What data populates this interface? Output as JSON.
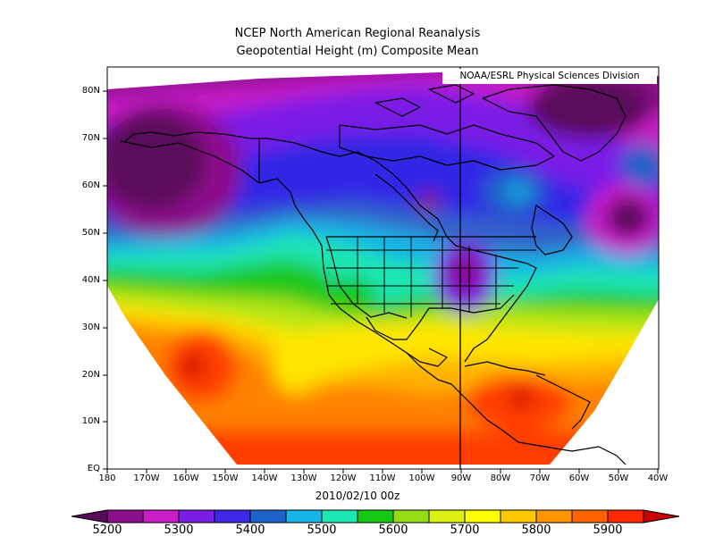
{
  "title": {
    "line1": "NCEP North American Regional Reanalysis",
    "line2": "Geopotential Height (m) Composite Mean"
  },
  "credit": "NOAA/ESRL Physical Sciences Division",
  "date": "2010/02/10 00z",
  "axes": {
    "lat_labels": [
      "80N",
      "70N",
      "60N",
      "50N",
      "40N",
      "30N",
      "20N",
      "10N",
      "EQ"
    ],
    "lon_labels": [
      "180",
      "170W",
      "160W",
      "150W",
      "140W",
      "130W",
      "120W",
      "110W",
      "100W",
      "90W",
      "80W",
      "70W",
      "60W",
      "50W",
      "40W"
    ]
  },
  "colorbar": {
    "labels": [
      "5200",
      "5300",
      "5400",
      "5500",
      "5600",
      "5700",
      "5800",
      "5900"
    ],
    "colors": [
      "#5a0a5a",
      "#8c0f8c",
      "#c81ec8",
      "#7a1ee6",
      "#3c28e6",
      "#1e64c8",
      "#14b4e6",
      "#1ee6b4",
      "#14c814",
      "#96dc14",
      "#dcf014",
      "#ffff00",
      "#ffc800",
      "#ff9600",
      "#ff6400",
      "#ff2800",
      "#c80000"
    ]
  }
}
